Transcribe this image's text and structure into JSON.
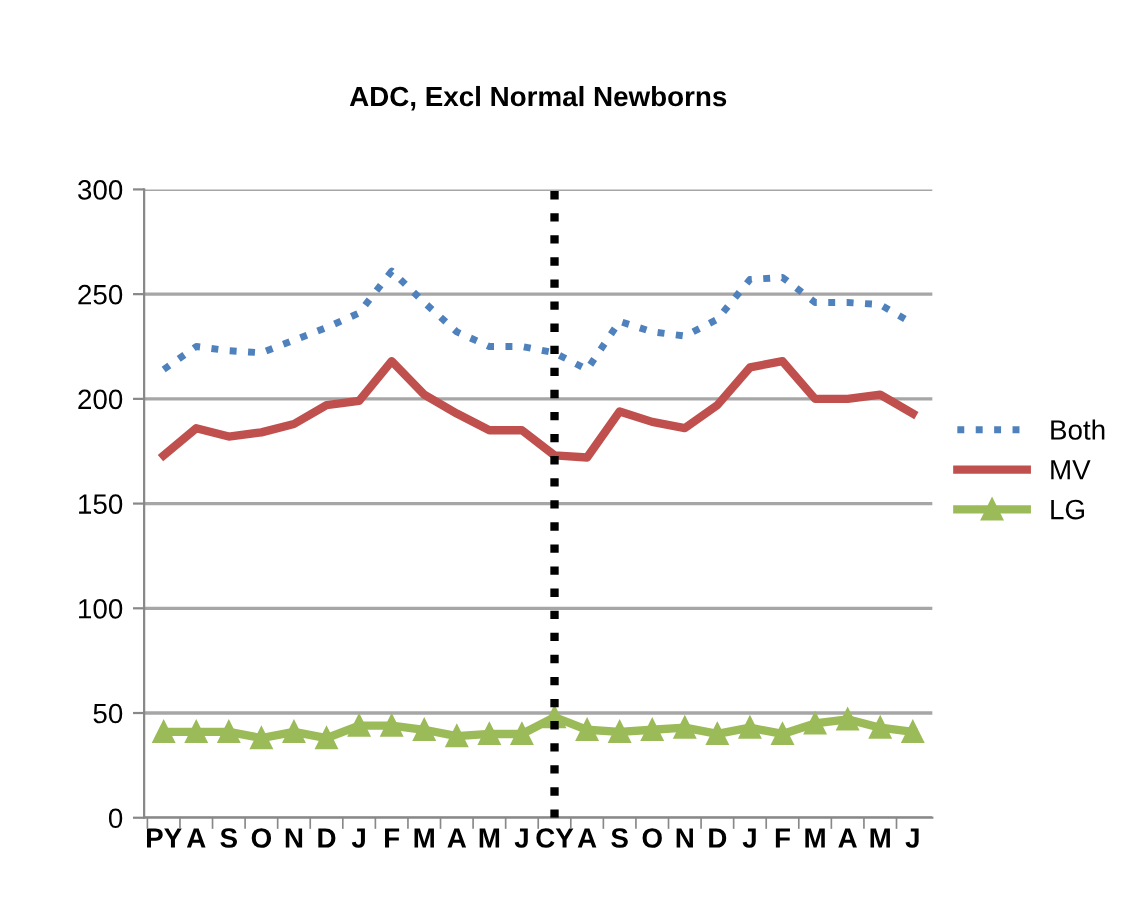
{
  "chart_data": {
    "type": "line",
    "title": "ADC, Excl Normal Newborns",
    "categories": [
      "PY",
      "A",
      "S",
      "O",
      "N",
      "D",
      "J",
      "F",
      "M",
      "A",
      "M",
      "J",
      "CY",
      "A",
      "S",
      "O",
      "N",
      "D",
      "J",
      "F",
      "M",
      "A",
      "M",
      "J"
    ],
    "series": [
      {
        "name": "Both",
        "color": "#4f81bd",
        "line_style": "dotted",
        "marker": "none",
        "values": [
          214,
          225,
          223,
          222,
          228,
          234,
          241,
          261,
          246,
          232,
          225,
          225,
          222,
          214,
          237,
          232,
          230,
          238,
          257,
          258,
          246,
          246,
          245,
          236
        ]
      },
      {
        "name": "MV",
        "color": "#c0504d",
        "line_style": "solid",
        "marker": "none",
        "values": [
          173,
          186,
          182,
          184,
          188,
          197,
          199,
          218,
          202,
          193,
          185,
          185,
          173,
          172,
          194,
          189,
          186,
          197,
          215,
          218,
          200,
          200,
          202,
          193
        ]
      },
      {
        "name": "LG",
        "color": "#9bbb59",
        "line_style": "solid",
        "marker": "triangle",
        "values": [
          41,
          41,
          41,
          38,
          41,
          38,
          44,
          44,
          42,
          39,
          40,
          40,
          48,
          42,
          41,
          42,
          43,
          40,
          43,
          40,
          45,
          47,
          43,
          41
        ]
      }
    ],
    "ylim": [
      0,
      300
    ],
    "yticks": [
      0,
      50,
      100,
      150,
      200,
      250,
      300
    ],
    "grid": "y",
    "legend": "right",
    "ref_lines": [
      {
        "axis": "x",
        "value": "CY",
        "color": "#000000",
        "line_style": "dotted"
      }
    ]
  }
}
